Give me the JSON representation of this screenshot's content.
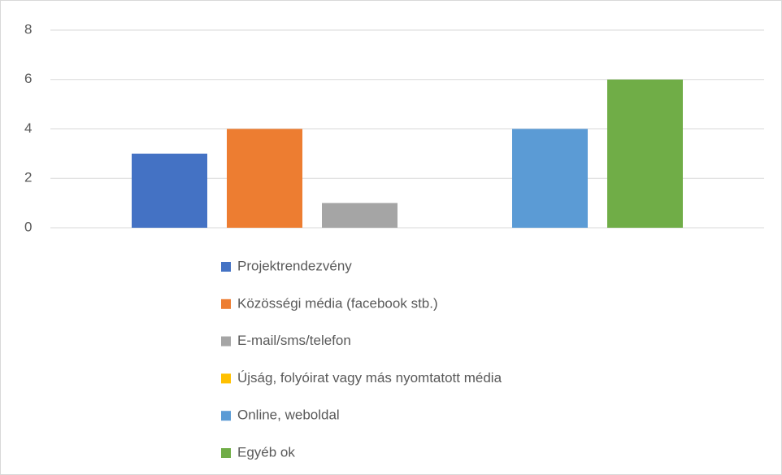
{
  "chart_data": {
    "type": "bar",
    "categories": [
      null
    ],
    "series": [
      {
        "name": "Projektrendezvény",
        "color": "#4472c4",
        "values": [
          3
        ]
      },
      {
        "name": "Közösségi média (facebook stb.)",
        "color": "#ed7d31",
        "values": [
          4
        ]
      },
      {
        "name": "E-mail/sms/telefon",
        "color": "#a5a5a5",
        "values": [
          1
        ]
      },
      {
        "name": "Újság, folyóirat vagy más nyomtatott média",
        "color": "#ffc000",
        "values": [
          0
        ]
      },
      {
        "name": "Online, weboldal",
        "color": "#5b9bd5",
        "values": [
          4
        ]
      },
      {
        "name": "Egyéb ok",
        "color": "#70ad47",
        "values": [
          6
        ]
      }
    ],
    "ylim": [
      0,
      8
    ],
    "yticks": [
      0,
      2,
      4,
      6,
      8
    ],
    "grid": true,
    "legend": "bottom"
  }
}
